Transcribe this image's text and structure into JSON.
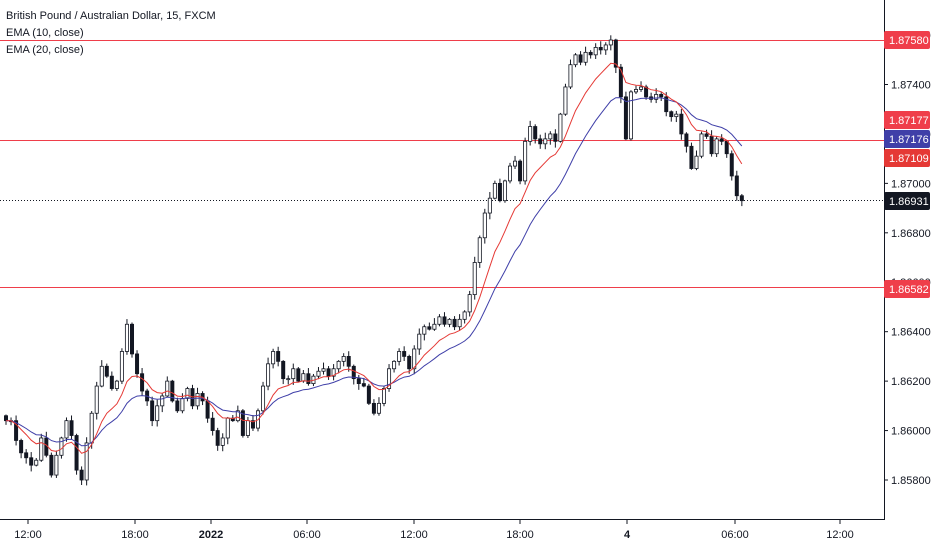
{
  "legend": {
    "title": "British Pound / Australian Dollar, 15, FXCM",
    "ema10": "EMA (10, close)",
    "ema20": "EMA (20, close)"
  },
  "colors": {
    "up": "#ffffff",
    "down": "#131722",
    "wick": "#131722",
    "ema10": "#e53935",
    "ema20": "#3f3fa8",
    "hline": "#ef3e4a",
    "axis_text": "#131722",
    "border": "#131722"
  },
  "chart_data": {
    "type": "candlestick",
    "title": "British Pound / Australian Dollar, 15, FXCM",
    "ylim": [
      1.8564,
      1.8781
    ],
    "grid": false,
    "x_ticks": [
      "12:00",
      "18:00",
      "2022",
      "06:00",
      "12:00",
      "18:00",
      "4",
      "06:00",
      "12:00"
    ],
    "y_ticks": [
      "1.87600",
      "1.87400",
      "1.87200",
      "1.87000",
      "1.86800",
      "1.86600",
      "1.86400",
      "1.86200",
      "1.86000",
      "1.85800"
    ],
    "horizontal_lines": [
      1.8758,
      1.87176,
      1.86582
    ],
    "price_tags": [
      {
        "label": "1.87580",
        "value": 1.8758,
        "color": "#ef3e4a"
      },
      {
        "label": "1.87177",
        "value": 1.87177,
        "color": "#ef3e4a"
      },
      {
        "label": "1.87176",
        "value": 1.87176,
        "color": "#3f3fa8"
      },
      {
        "label": "1.87109",
        "value": 1.87109,
        "color": "#e53935"
      },
      {
        "label": "1.86931",
        "value": 1.86931,
        "color": "#131722"
      },
      {
        "label": "1.86582",
        "value": 1.86582,
        "color": "#ef3e4a"
      }
    ],
    "last_price": 1.86931,
    "closes": [
      1.8604,
      1.8604,
      1.8596,
      1.8591,
      1.8589,
      1.8586,
      1.8588,
      1.8597,
      1.859,
      1.8582,
      1.859,
      1.8597,
      1.8604,
      1.8598,
      1.8584,
      1.858,
      1.8595,
      1.8607,
      1.8618,
      1.8626,
      1.8622,
      1.8617,
      1.862,
      1.8632,
      1.8643,
      1.8631,
      1.8623,
      1.8616,
      1.8612,
      1.8604,
      1.861,
      1.8614,
      1.862,
      1.8612,
      1.8608,
      1.8613,
      1.8617,
      1.861,
      1.8615,
      1.8612,
      1.8605,
      1.86,
      1.8594,
      1.8597,
      1.8605,
      1.8604,
      1.8608,
      1.8598,
      1.8604,
      1.8601,
      1.8608,
      1.8618,
      1.8627,
      1.8632,
      1.8628,
      1.8621,
      1.8621,
      1.8625,
      1.862,
      1.8623,
      1.8619,
      1.8622,
      1.8624,
      1.8625,
      1.8622,
      1.8625,
      1.8628,
      1.863,
      1.8626,
      1.8621,
      1.8619,
      1.8618,
      1.8611,
      1.8607,
      1.8611,
      1.8617,
      1.8625,
      1.8628,
      1.8632,
      1.863,
      1.8625,
      1.8633,
      1.8639,
      1.8642,
      1.8641,
      1.8643,
      1.8646,
      1.8643,
      1.8645,
      1.8642,
      1.8645,
      1.8648,
      1.8655,
      1.8668,
      1.8678,
      1.8688,
      1.8694,
      1.87,
      1.8693,
      1.8701,
      1.8707,
      1.8709,
      1.8701,
      1.8717,
      1.8723,
      1.8718,
      1.8716,
      1.8718,
      1.872,
      1.8717,
      1.8728,
      1.8739,
      1.8748,
      1.8752,
      1.8749,
      1.8753,
      1.8752,
      1.8755,
      1.8754,
      1.8756,
      1.8758,
      1.8747,
      1.8735,
      1.8718,
      1.8737,
      1.8738,
      1.8739,
      1.8735,
      1.8734,
      1.8736,
      1.8735,
      1.8729,
      1.8727,
      1.8728,
      1.872,
      1.8715,
      1.8706,
      1.8711,
      1.872,
      1.8719,
      1.8712,
      1.8718,
      1.8717,
      1.8712,
      1.8703,
      1.8695,
      1.8693
    ]
  }
}
